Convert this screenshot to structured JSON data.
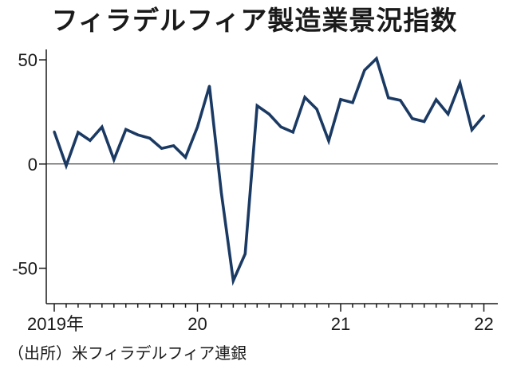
{
  "chart_data": {
    "type": "line",
    "title": "フィラデルフィア製造業景況指数",
    "source": "（出所）米フィラデルフィア連銀",
    "xlabel": "",
    "ylabel": "",
    "x_ticks": [
      "2019年",
      "20",
      "21",
      "22"
    ],
    "y_ticks": [
      "50",
      "0",
      "-50"
    ],
    "ylim": [
      -67,
      55
    ],
    "grid": false,
    "baseline": 0,
    "line_color": "#1b3a63",
    "series": [
      {
        "x": [
          "2019-01",
          "2019-02",
          "2019-03",
          "2019-04",
          "2019-05",
          "2019-06",
          "2019-07",
          "2019-08",
          "2019-09",
          "2019-10",
          "2019-11",
          "2019-12",
          "2020-01",
          "2020-02",
          "2020-03",
          "2020-04",
          "2020-05",
          "2020-06",
          "2020-07",
          "2020-08",
          "2020-09",
          "2020-10",
          "2020-11",
          "2020-12",
          "2021-01",
          "2021-02",
          "2021-03",
          "2021-04",
          "2021-05",
          "2021-06",
          "2021-07",
          "2021-08",
          "2021-09",
          "2021-10",
          "2021-11",
          "2021-12",
          "2022-01"
        ],
        "values": [
          15.5,
          -0.8,
          15.2,
          11.3,
          17.8,
          2.1,
          16.6,
          14.0,
          12.4,
          7.5,
          8.8,
          3.2,
          17.8,
          37.4,
          -13.7,
          -56.0,
          -43.1,
          28.0,
          24.0,
          17.8,
          15.3,
          32.0,
          26.3,
          11.1,
          31.0,
          29.5,
          45.0,
          50.6,
          31.8,
          30.6,
          21.8,
          20.4,
          30.9,
          24.0,
          38.8,
          16.4,
          23.2
        ]
      }
    ]
  }
}
